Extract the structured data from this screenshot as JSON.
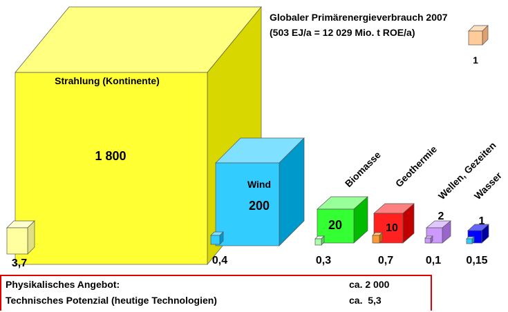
{
  "header": {
    "line1": "Globaler Primärenergieverbrauch 2007",
    "line2": "(503 EJ/a = 12 029 Mio. t ROE/a)",
    "reference": "1"
  },
  "sources": [
    {
      "name": "Strahlung (Kontinente)",
      "physical": "1 800",
      "technical": "3,7"
    },
    {
      "name": "Wind",
      "physical": "200",
      "technical": "0,4"
    },
    {
      "name": "Biomasse",
      "physical": "20",
      "technical": "0,3"
    },
    {
      "name": "Geothermie",
      "physical": "10",
      "technical": "0,7"
    },
    {
      "name": "Wellen, Gezeiten",
      "physical": "2",
      "technical": "0,1"
    },
    {
      "name": "Wasser",
      "physical": "1",
      "technical": "0,15"
    }
  ],
  "summary": {
    "rows": [
      [
        "Physikalisches Angebot:",
        "ca. 2 000"
      ],
      [
        "Technisches Potenzial (heutige Technologien)",
        "ca.  5,3"
      ]
    ]
  }
}
